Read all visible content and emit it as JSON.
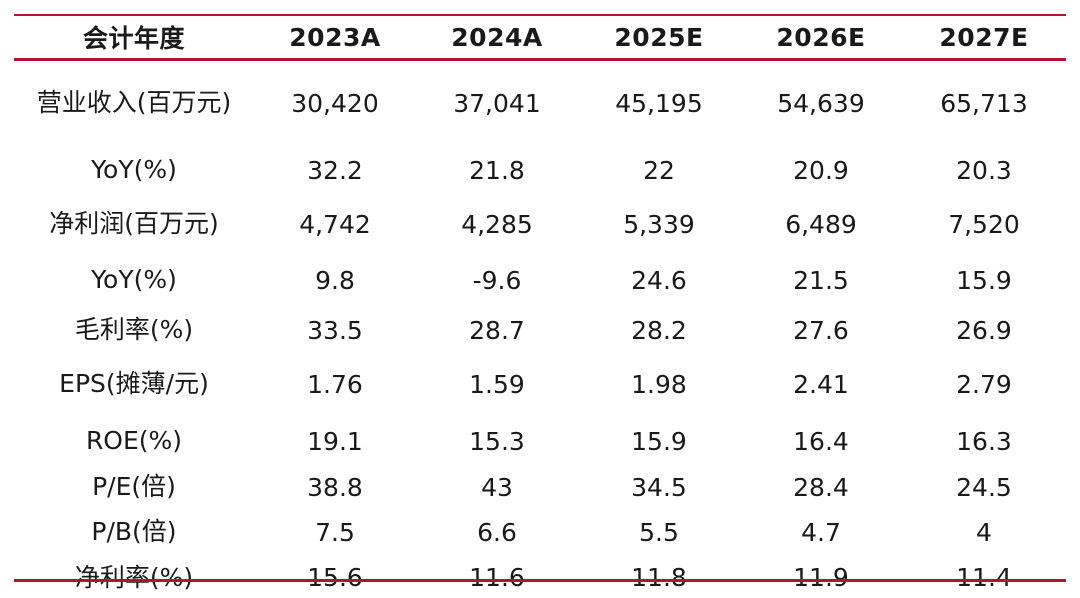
{
  "table": {
    "headers": [
      "会计年度",
      "2023A",
      "2024A",
      "2025E",
      "2026E",
      "2027E"
    ],
    "rows": [
      {
        "label": "营业收入(百万元)",
        "values": [
          "30,420",
          "37,041",
          "45,195",
          "54,639",
          "65,713"
        ]
      },
      {
        "label": "YoY(%)",
        "values": [
          "32.2",
          "21.8",
          "22",
          "20.9",
          "20.3"
        ]
      },
      {
        "label": "净利润(百万元)",
        "values": [
          "4,742",
          "4,285",
          "5,339",
          "6,489",
          "7,520"
        ]
      },
      {
        "label": "YoY(%)",
        "values": [
          "9.8",
          "-9.6",
          "24.6",
          "21.5",
          "15.9"
        ]
      },
      {
        "label": "毛利率(%)",
        "values": [
          "33.5",
          "28.7",
          "28.2",
          "27.6",
          "26.9"
        ]
      },
      {
        "label": "EPS(摊薄/元)",
        "values": [
          "1.76",
          "1.59",
          "1.98",
          "2.41",
          "2.79"
        ]
      },
      {
        "label": "ROE(%)",
        "values": [
          "19.1",
          "15.3",
          "15.9",
          "16.4",
          "16.3"
        ]
      },
      {
        "label": "P/E(倍)",
        "values": [
          "38.8",
          "43",
          "34.5",
          "28.4",
          "24.5"
        ]
      },
      {
        "label": "P/B(倍)",
        "values": [
          "7.5",
          "6.6",
          "5.5",
          "4.7",
          "4"
        ]
      },
      {
        "label": "净利率(%)",
        "values": [
          "15.6",
          "11.6",
          "11.8",
          "11.9",
          "11.4"
        ]
      }
    ]
  },
  "colors": {
    "rule": "#b0152d",
    "text": "#1a1a1a"
  }
}
